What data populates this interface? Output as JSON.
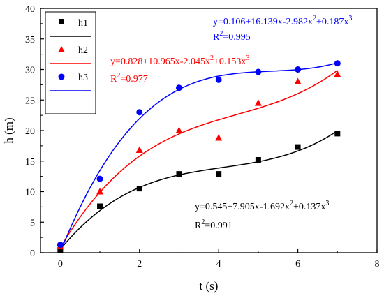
{
  "chart_data": {
    "type": "scatter",
    "xlabel": "t (s)",
    "ylabel": "h (m)",
    "xlim": [
      -0.5,
      8
    ],
    "ylim": [
      0,
      40
    ],
    "xticks": [
      0,
      2,
      4,
      6,
      8
    ],
    "xtick_labels": [
      "0",
      "2",
      "4",
      "6",
      "8"
    ],
    "yticks": [
      0,
      5,
      10,
      15,
      20,
      25,
      30,
      35,
      40
    ],
    "ytick_labels": [
      "0",
      "5",
      "10",
      "15",
      "20",
      "25",
      "30",
      "35",
      "40"
    ],
    "grid": false,
    "legend_position": "top-left",
    "series": [
      {
        "name": "h1",
        "marker": "square",
        "color": "#000000",
        "x": [
          0,
          1,
          2,
          3,
          4,
          5,
          6,
          7
        ],
        "y": [
          0.5,
          7.6,
          10.5,
          12.9,
          12.9,
          15.2,
          17.3,
          19.5
        ],
        "fit": {
          "equation_parts": [
            "y=0.545+7.905x-1.692x",
            "2",
            "+0.137x",
            "3"
          ],
          "r2_parts": [
            "R",
            "2",
            "=0.991"
          ],
          "coefficients": [
            0.545,
            7.905,
            -1.692,
            0.137
          ]
        }
      },
      {
        "name": "h2",
        "marker": "triangle",
        "color": "#ff0000",
        "x": [
          0,
          1,
          2,
          3,
          4,
          5,
          6,
          7
        ],
        "y": [
          1.0,
          10.0,
          16.8,
          20.0,
          18.8,
          24.5,
          28.0,
          29.2
        ],
        "fit": {
          "equation_parts": [
            "y=0.828+10.965x-2.045x",
            "2",
            "+0.153x",
            "3"
          ],
          "r2_parts": [
            "R",
            "2",
            "=0.977"
          ],
          "coefficients": [
            0.828,
            10.965,
            -2.045,
            0.153
          ]
        }
      },
      {
        "name": "h3",
        "marker": "circle",
        "color": "#0000ff",
        "x": [
          0,
          1,
          2,
          3,
          4,
          5,
          6,
          7
        ],
        "y": [
          1.3,
          12.1,
          23.0,
          27.0,
          28.3,
          29.6,
          30.0,
          31.0
        ],
        "fit": {
          "equation_parts": [
            "y=0.106+16.139x-2.982x",
            "2",
            "+0.187x",
            "3"
          ],
          "r2_parts": [
            "R",
            "2",
            "=0.995"
          ],
          "coefficients": [
            0.106,
            16.139,
            -2.982,
            0.187
          ]
        }
      }
    ]
  }
}
